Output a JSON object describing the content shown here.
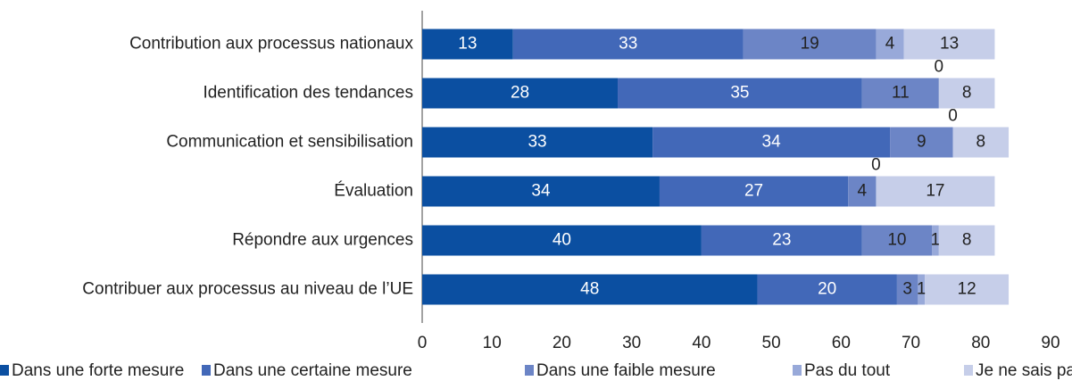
{
  "chart_data": {
    "type": "stacked-barh",
    "categories": [
      "Contribution aux processus nationaux",
      "Identification des tendances",
      "Communication et sensibilisation",
      "Évaluation",
      "Répondre aux urgences",
      "Contribuer aux processus au niveau de l’UE"
    ],
    "series": [
      {
        "name": "Dans une forte mesure",
        "color": "#0b4fa1",
        "values": [
          13,
          28,
          33,
          34,
          40,
          48
        ]
      },
      {
        "name": "Dans une certaine mesure",
        "color": "#4268b8",
        "values": [
          33,
          35,
          34,
          27,
          23,
          20
        ]
      },
      {
        "name": "Dans une faible mesure",
        "color": "#6c85c6",
        "values": [
          19,
          11,
          9,
          4,
          10,
          3
        ]
      },
      {
        "name": "Pas du tout",
        "color": "#98a9d9",
        "values": [
          4,
          0,
          0,
          0,
          1,
          1
        ]
      },
      {
        "name": "Je ne sais pas",
        "color": "#c6cee9",
        "values": [
          13,
          8,
          8,
          17,
          8,
          12
        ]
      }
    ],
    "xlim": [
      0,
      90
    ],
    "xticks": [
      0,
      10,
      20,
      30,
      40,
      50,
      60,
      70,
      80,
      90
    ],
    "grid": false,
    "legend": "bottom"
  }
}
